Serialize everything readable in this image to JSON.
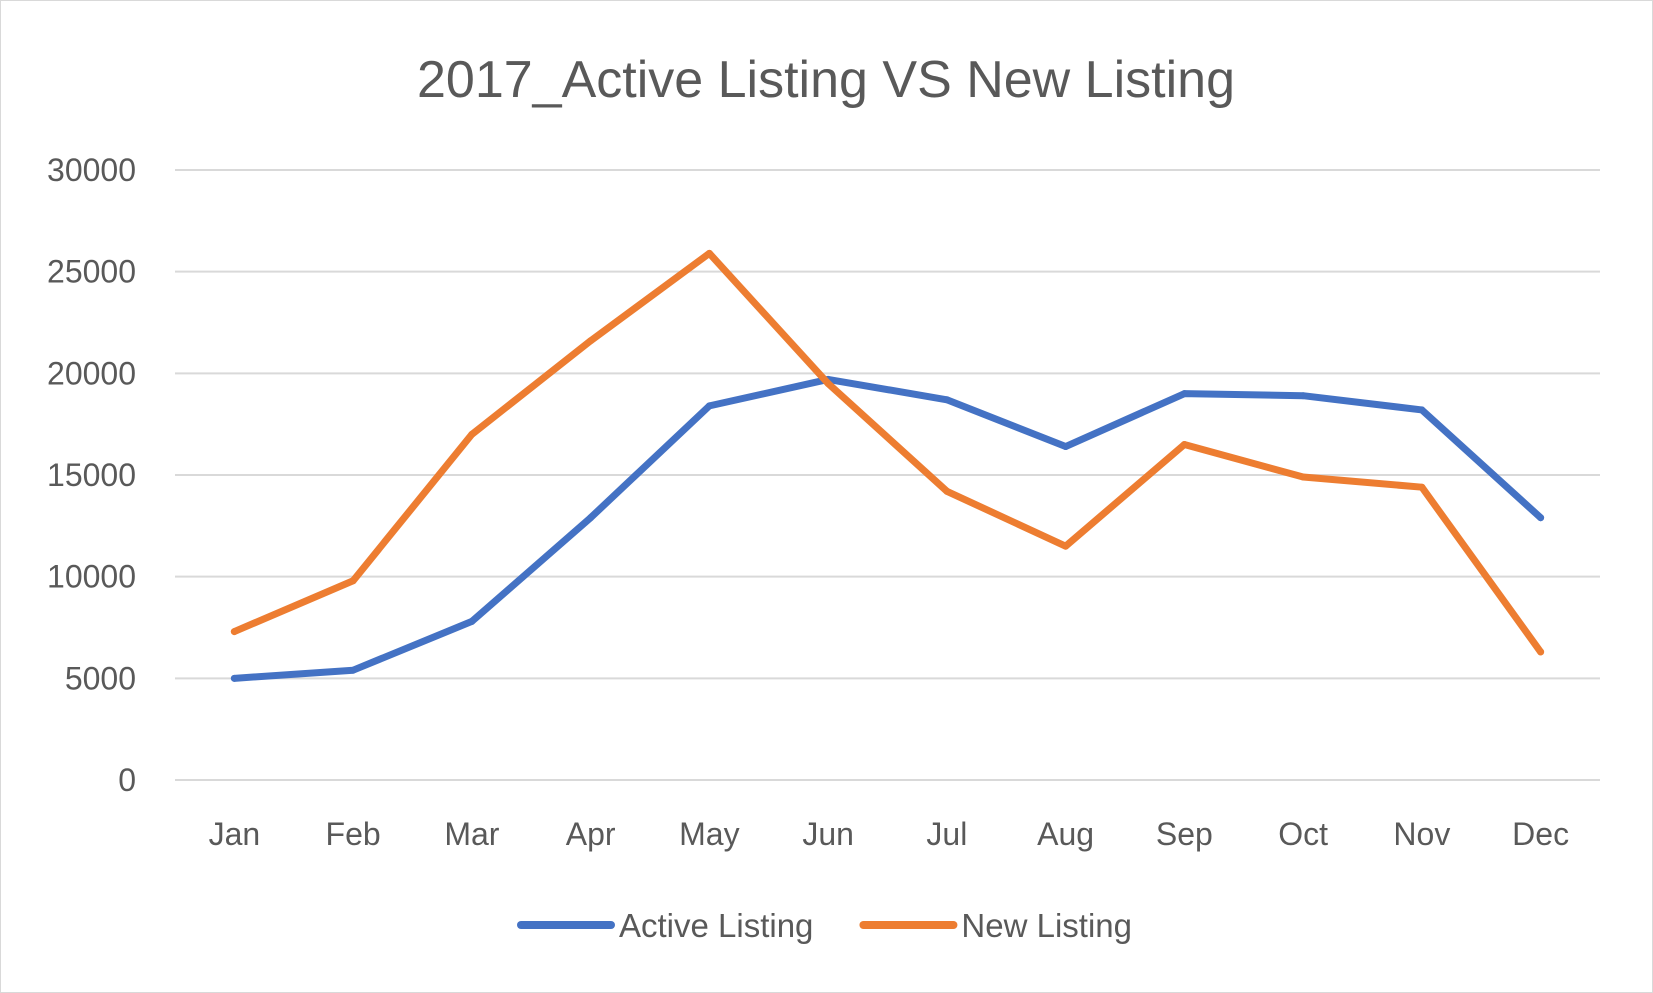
{
  "chart_data": {
    "type": "line",
    "title": "2017_Active Listing VS New Listing",
    "xlabel": "",
    "ylabel": "",
    "categories": [
      "Jan",
      "Feb",
      "Mar",
      "Apr",
      "May",
      "Jun",
      "Jul",
      "Aug",
      "Sep",
      "Oct",
      "Nov",
      "Dec"
    ],
    "y_ticks": [
      "0",
      "5000",
      "10000",
      "15000",
      "20000",
      "25000",
      "30000"
    ],
    "ylim": [
      0,
      30000
    ],
    "grid": true,
    "legend_position": "bottom",
    "series": [
      {
        "name": "Active Listing",
        "color": "#4472C4",
        "values": [
          5000,
          5400,
          7800,
          12900,
          18400,
          19700,
          18700,
          16400,
          19000,
          18900,
          18200,
          12900
        ]
      },
      {
        "name": "New Listing",
        "color": "#ED7D31",
        "values": [
          7300,
          9800,
          17000,
          21600,
          25900,
          19500,
          14200,
          11500,
          16500,
          14900,
          14400,
          6300
        ]
      }
    ]
  }
}
